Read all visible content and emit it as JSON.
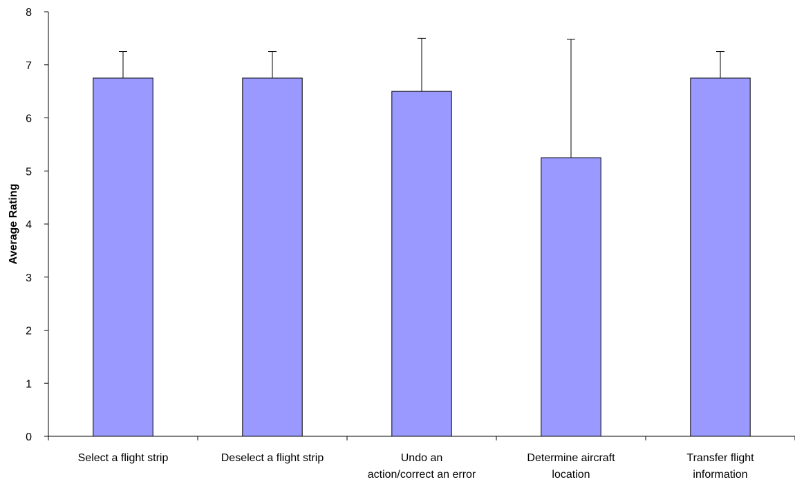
{
  "chart_data": {
    "type": "bar",
    "title": "",
    "xlabel": "",
    "ylabel": "Average Rating",
    "ylim": [
      0,
      8
    ],
    "yticks": [
      0,
      1,
      2,
      3,
      4,
      5,
      6,
      7,
      8
    ],
    "grid": false,
    "categories": [
      "Select a flight strip",
      "Deselect a flight strip",
      "Undo an action/correct an error",
      "Determine aircraft location",
      "Transfer flight information"
    ],
    "category_label_lines": [
      [
        "Select a flight strip"
      ],
      [
        "Deselect a flight strip"
      ],
      [
        "Undo an",
        "action/correct an error"
      ],
      [
        "Determine aircraft",
        "location"
      ],
      [
        "Transfer flight",
        "information"
      ]
    ],
    "values": [
      6.75,
      6.75,
      6.5,
      5.25,
      6.75
    ],
    "error_upper": [
      7.25,
      7.25,
      7.5,
      7.48,
      7.25
    ],
    "bar_color": "#9999ff",
    "edge_color": "#000000"
  }
}
